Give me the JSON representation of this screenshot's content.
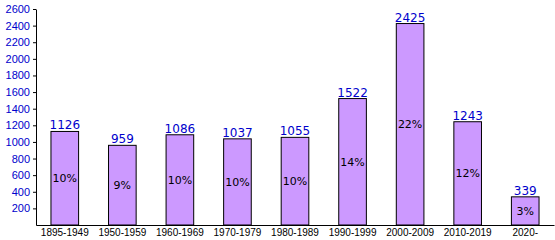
{
  "chart_data": {
    "type": "bar",
    "categories": [
      "1895-1949",
      "1950-1959",
      "1960-1969",
      "1970-1979",
      "1980-1989",
      "1990-1999",
      "2000-2009",
      "2010-2019",
      "2020-"
    ],
    "values": [
      1126,
      959,
      1086,
      1037,
      1055,
      1522,
      2425,
      1243,
      339
    ],
    "percent_labels": [
      "10%",
      "9%",
      "10%",
      "10%",
      "10%",
      "14%",
      "22%",
      "12%",
      "3%"
    ],
    "color": "#cc99ff",
    "ylim": [
      0,
      2600
    ],
    "yticks": [
      200,
      400,
      600,
      800,
      1000,
      1200,
      1400,
      1600,
      1800,
      2000,
      2200,
      2400,
      2600
    ],
    "grid": false,
    "data_labels": true
  }
}
